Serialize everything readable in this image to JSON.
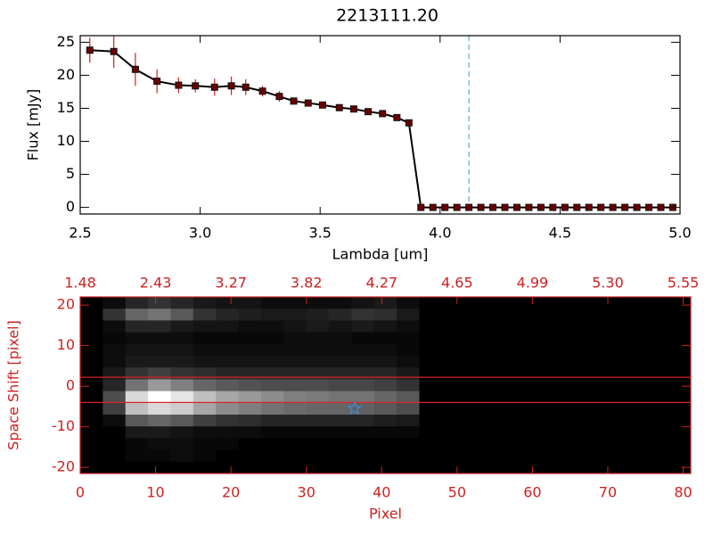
{
  "chart_data": [
    {
      "type": "line",
      "title": "2213111.20",
      "xlabel": "Lambda [um]",
      "ylabel": "Flux [mJy]",
      "xlim": [
        2.5,
        5.0
      ],
      "ylim": [
        -1,
        26
      ],
      "xticks": [
        2.5,
        {
          "value": 3,
          "label": "3.0"
        },
        3.5,
        {
          "value": 4,
          "label": "4.0"
        },
        4.5,
        {
          "value": 5,
          "label": "5.0"
        }
      ],
      "yticks": [
        0,
        5,
        10,
        15,
        20,
        25
      ],
      "axis_color": "#000000",
      "line_color": "#000000",
      "marker_color": "#6a0000",
      "error_color": "#d02020",
      "vline": 4.12,
      "vline_color": "#3a9ad0",
      "x": [
        2.54,
        2.64,
        2.73,
        2.82,
        2.91,
        2.98,
        3.06,
        3.13,
        3.19,
        3.26,
        3.33,
        3.39,
        3.45,
        3.51,
        3.58,
        3.64,
        3.7,
        3.76,
        3.82,
        3.87,
        3.92,
        3.97,
        4.02,
        4.07,
        4.12,
        4.17,
        4.22,
        4.27,
        4.32,
        4.37,
        4.42,
        4.47,
        4.52,
        4.57,
        4.62,
        4.67,
        4.72,
        4.77,
        4.82,
        4.87,
        4.92,
        4.97
      ],
      "values": [
        23.8,
        23.6,
        20.9,
        19.1,
        18.5,
        18.4,
        18.2,
        18.4,
        18.2,
        17.6,
        16.8,
        16.1,
        15.8,
        15.5,
        15.1,
        14.9,
        14.5,
        14.2,
        13.6,
        12.8,
        0,
        0,
        0,
        0,
        0,
        0,
        0,
        0,
        0,
        0,
        0,
        0,
        0,
        0,
        0,
        0,
        0,
        0,
        0,
        0,
        0,
        0
      ],
      "errors": [
        1.9,
        2.5,
        2.5,
        1.8,
        1.2,
        1.0,
        1.3,
        1.4,
        1.2,
        0.8,
        0.8,
        0.5,
        0.4,
        0.4,
        0.4,
        0.4,
        0.4,
        0.3,
        0.3,
        0.3,
        0.1,
        0.1,
        0.1,
        0.1,
        0.1,
        0.1,
        0.1,
        0.1,
        0.1,
        0.1,
        0.1,
        0.1,
        0.1,
        0.1,
        0.1,
        0.1,
        0.1,
        0.1,
        0.1,
        0.1,
        0.1,
        0.1
      ]
    },
    {
      "type": "image",
      "xlabel": "Pixel",
      "ylabel": "Space Shift [pixel]",
      "xlim": [
        0,
        81
      ],
      "ylim": [
        -21.5,
        22
      ],
      "xticks": [
        0,
        10,
        20,
        30,
        40,
        50,
        60,
        70,
        80
      ],
      "x2ticks": [
        {
          "value": 0,
          "label": "1.48"
        },
        {
          "value": 10,
          "label": "2.43"
        },
        {
          "value": 20,
          "label": "3.27"
        },
        {
          "value": 30,
          "label": "3.82"
        },
        {
          "value": 40,
          "label": "4.27"
        },
        {
          "value": 50,
          "label": "4.65"
        },
        {
          "value": 60,
          "label": "4.99"
        },
        {
          "value": 70,
          "label": "5.30"
        },
        {
          "value": 80,
          "label": "5.55"
        }
      ],
      "yticks": [
        -20,
        -10,
        0,
        10,
        20
      ],
      "axis_color": "#cc2222",
      "hline_color": "#dd2222",
      "hlines": [
        2.2,
        -4.0
      ],
      "marker": {
        "x": 36.4,
        "y": -5.5,
        "color": "#3a8ee0"
      },
      "z": [
        [
          0,
          5,
          15,
          20,
          15,
          10,
          8,
          8,
          5,
          5,
          5,
          5,
          8,
          10,
          5,
          0,
          0,
          0,
          0,
          0,
          0,
          0,
          0,
          0,
          0,
          0,
          0
        ],
        [
          0,
          20,
          40,
          45,
          35,
          20,
          15,
          12,
          10,
          10,
          12,
          15,
          20,
          18,
          10,
          0,
          0,
          0,
          0,
          0,
          0,
          0,
          0,
          0,
          0,
          0,
          0
        ],
        [
          0,
          5,
          15,
          15,
          10,
          8,
          8,
          5,
          5,
          8,
          10,
          8,
          10,
          8,
          5,
          0,
          0,
          0,
          0,
          0,
          0,
          0,
          0,
          0,
          0,
          0,
          0
        ],
        [
          0,
          3,
          5,
          5,
          5,
          3,
          3,
          3,
          3,
          5,
          5,
          5,
          3,
          3,
          3,
          0,
          0,
          0,
          0,
          0,
          0,
          0,
          0,
          0,
          0,
          0,
          0
        ],
        [
          0,
          5,
          8,
          8,
          8,
          5,
          5,
          5,
          5,
          5,
          5,
          5,
          5,
          5,
          3,
          0,
          0,
          0,
          0,
          0,
          0,
          0,
          0,
          0,
          0,
          0,
          0
        ],
        [
          0,
          5,
          10,
          10,
          10,
          8,
          8,
          8,
          8,
          8,
          8,
          8,
          8,
          8,
          5,
          0,
          0,
          0,
          0,
          0,
          0,
          0,
          0,
          0,
          0,
          0,
          0
        ],
        [
          0,
          10,
          20,
          25,
          20,
          18,
          15,
          15,
          15,
          15,
          15,
          15,
          15,
          15,
          10,
          0,
          0,
          0,
          0,
          0,
          0,
          0,
          0,
          0,
          0,
          0,
          0
        ],
        [
          0,
          15,
          45,
          60,
          50,
          40,
          35,
          32,
          30,
          30,
          30,
          28,
          28,
          25,
          20,
          0,
          0,
          0,
          0,
          0,
          0,
          0,
          0,
          0,
          0,
          0,
          0
        ],
        [
          0,
          30,
          85,
          100,
          90,
          75,
          65,
          60,
          55,
          50,
          48,
          45,
          45,
          40,
          35,
          0,
          0,
          0,
          0,
          0,
          0,
          0,
          0,
          0,
          0,
          0,
          0
        ],
        [
          0,
          25,
          75,
          85,
          80,
          65,
          55,
          50,
          45,
          42,
          40,
          40,
          38,
          35,
          30,
          0,
          0,
          0,
          0,
          0,
          0,
          0,
          0,
          0,
          0,
          0,
          0
        ],
        [
          0,
          5,
          35,
          40,
          35,
          25,
          20,
          18,
          15,
          15,
          15,
          15,
          15,
          12,
          10,
          0,
          0,
          0,
          0,
          0,
          0,
          0,
          0,
          0,
          0,
          0,
          0
        ],
        [
          0,
          0,
          10,
          10,
          8,
          5,
          5,
          5,
          3,
          3,
          3,
          3,
          3,
          3,
          3,
          0,
          0,
          0,
          0,
          0,
          0,
          0,
          0,
          0,
          0,
          0,
          0
        ],
        [
          0,
          0,
          3,
          5,
          5,
          3,
          3,
          0,
          0,
          0,
          0,
          0,
          0,
          0,
          0,
          0,
          0,
          0,
          0,
          0,
          0,
          0,
          0,
          0,
          0,
          0,
          0
        ],
        [
          0,
          0,
          3,
          3,
          5,
          3,
          0,
          0,
          0,
          0,
          0,
          0,
          0,
          0,
          0,
          0,
          0,
          0,
          0,
          0,
          0,
          0,
          0,
          0,
          0,
          0,
          0
        ],
        [
          0,
          0,
          0,
          0,
          0,
          0,
          0,
          0,
          0,
          0,
          0,
          0,
          0,
          0,
          0,
          0,
          0,
          0,
          0,
          0,
          0,
          0,
          0,
          0,
          0,
          0,
          0
        ]
      ]
    }
  ]
}
